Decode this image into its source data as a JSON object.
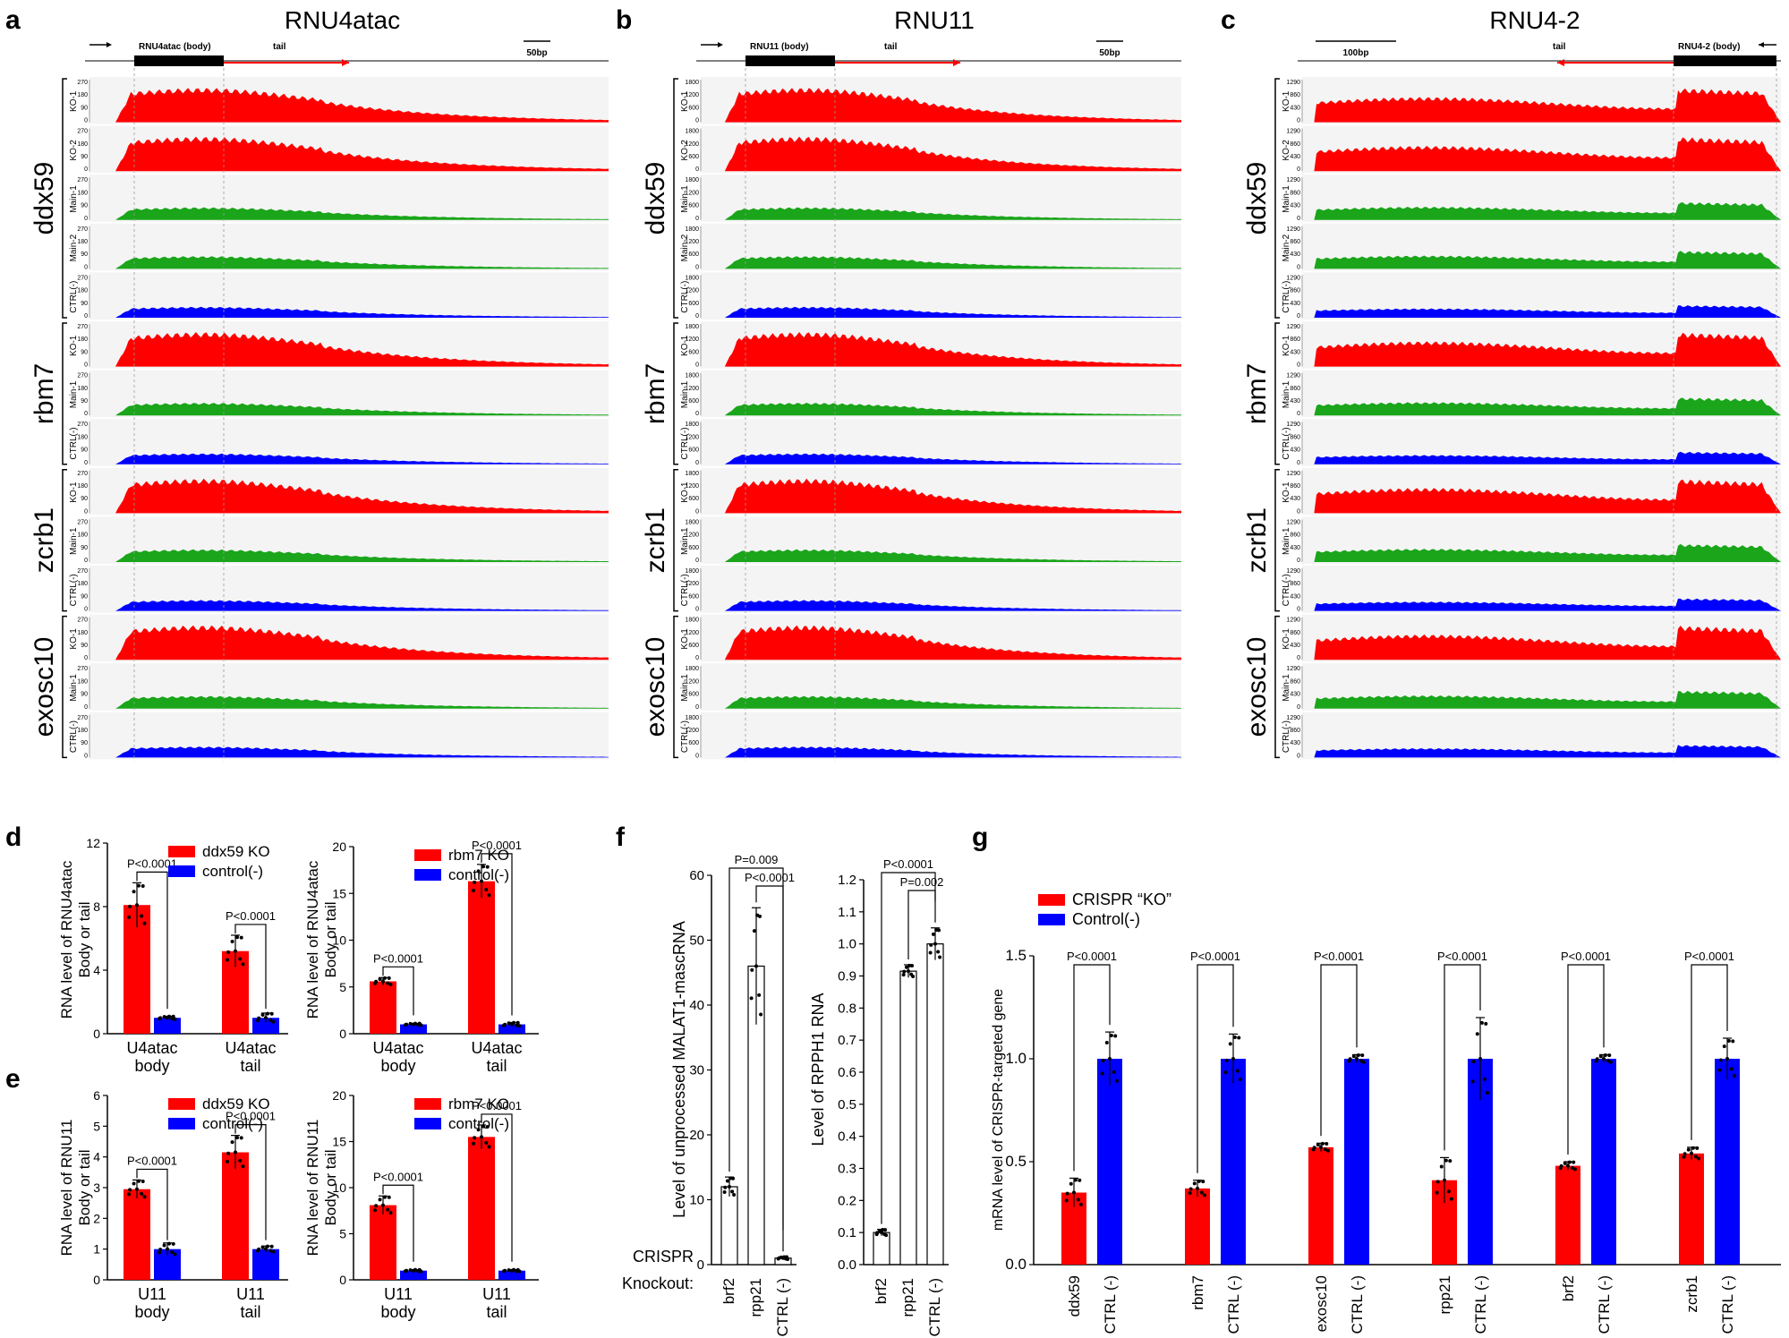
{
  "panel_letters": [
    "a",
    "b",
    "c",
    "d",
    "e",
    "f",
    "g"
  ],
  "colors": {
    "ko": "#ff0000",
    "main": "#1aa51a",
    "ctrl": "#0000ff",
    "black": "#000000",
    "track_bg": "#f4f4f4"
  },
  "gene_groups": [
    {
      "name": "ddx59",
      "tracks": [
        "KO-1",
        "KO-2",
        "Main-1",
        "Main-2",
        "CTRL(-)"
      ]
    },
    {
      "name": "rbm7",
      "tracks": [
        "KO-1",
        "Main-1",
        "CTRL(-)"
      ]
    },
    {
      "name": "zcrb1",
      "tracks": [
        "KO-1",
        "Main-1",
        "CTRL(-)"
      ]
    },
    {
      "name": "exosc10",
      "tracks": [
        "KO-1",
        "Main-1",
        "CTRL(-)"
      ]
    }
  ],
  "track_panels": [
    {
      "letter": "a",
      "title": "RNU4atac",
      "body_label": "RNU4atac (body)",
      "tail_label": "tail",
      "scale_label": "50bp",
      "axis_ticks": [
        "270",
        "180",
        "90",
        "0"
      ]
    },
    {
      "letter": "b",
      "title": "RNU11",
      "body_label": "RNU11 (body)",
      "tail_label": "tail",
      "scale_label": "50bp",
      "axis_ticks": [
        "1800",
        "1200",
        "600",
        "0"
      ]
    },
    {
      "letter": "c",
      "title": "RNU4-2",
      "body_label": "RNU4-2 (body)",
      "tail_label": "tail",
      "scale_label": "100bp",
      "axis_ticks": [
        "1290",
        "860",
        "430",
        "0"
      ]
    }
  ],
  "chart_data": [
    {
      "panel": "d",
      "type": "bar",
      "sub": "ddx59",
      "ylabel": "RNA level of RNU4atac\nBody or tail",
      "ylim": [
        0,
        12
      ],
      "yticks": [
        "0",
        "4",
        "8",
        "12"
      ],
      "categories": [
        "U4atac\nbody",
        "U4atac\ntail"
      ],
      "series": [
        {
          "name": "ddx59 KO",
          "values": [
            8.1,
            5.2
          ],
          "err": [
            1.4,
            1.0
          ]
        },
        {
          "name": "control(-)",
          "values": [
            1.0,
            1.0
          ],
          "err": [
            0.1,
            0.3
          ]
        }
      ],
      "pvalues": [
        "P<0.0001",
        "P<0.0001"
      ]
    },
    {
      "panel": "d",
      "type": "bar",
      "sub": "rbm7",
      "ylabel": "RNA level of RNU4atac\nBody or tail",
      "ylim": [
        0,
        20
      ],
      "yticks": [
        "0",
        "5",
        "10",
        "15",
        "20"
      ],
      "categories": [
        "U4atac\nbody",
        "U4atac\ntail"
      ],
      "series": [
        {
          "name": "rbm7 KO",
          "values": [
            5.6,
            16.3
          ],
          "err": [
            0.4,
            1.8
          ]
        },
        {
          "name": "control(-)",
          "values": [
            1.0,
            1.0
          ],
          "err": [
            0.1,
            0.2
          ]
        }
      ],
      "pvalues": [
        "P<0.0001",
        "P<0.0001"
      ]
    },
    {
      "panel": "e",
      "type": "bar",
      "sub": "ddx59",
      "ylabel": "RNA level of RNU11\nBody or tail",
      "ylim": [
        0,
        6
      ],
      "yticks": [
        "0",
        "1",
        "2",
        "3",
        "4",
        "5",
        "6"
      ],
      "categories": [
        "U11\nbody",
        "U11\ntail"
      ],
      "series": [
        {
          "name": "ddx59 KO",
          "values": [
            2.95,
            4.15
          ],
          "err": [
            0.3,
            0.55
          ]
        },
        {
          "name": "control(-)",
          "values": [
            1.0,
            1.0
          ],
          "err": [
            0.2,
            0.1
          ]
        }
      ],
      "pvalues": [
        "P<0.0001",
        "P<0.0001"
      ]
    },
    {
      "panel": "e",
      "type": "bar",
      "sub": "rbm7",
      "ylabel": "RNA level of RNU11\nBody or tail",
      "ylim": [
        0,
        20
      ],
      "yticks": [
        "0",
        "5",
        "10",
        "15",
        "20"
      ],
      "categories": [
        "U11\nbody",
        "U11\ntail"
      ],
      "series": [
        {
          "name": "rbm7 KO",
          "values": [
            8.1,
            15.5
          ],
          "err": [
            1.0,
            1.3
          ]
        },
        {
          "name": "control(-)",
          "values": [
            1.0,
            1.0
          ],
          "err": [
            0.1,
            0.1
          ]
        }
      ],
      "pvalues": [
        "P<0.0001",
        "P<0.0001"
      ]
    },
    {
      "panel": "f",
      "type": "bar",
      "ylabel": "Level of unprocessed MALAT1-mascRNA",
      "ylim": [
        0,
        60
      ],
      "yticks": [
        "0",
        "10",
        "20",
        "30",
        "40",
        "50",
        "60"
      ],
      "categories": [
        "brf2",
        "rpp21",
        "CTRL (-)"
      ],
      "values": [
        12.0,
        46.0,
        1.0
      ],
      "err": [
        1.5,
        9.0,
        0.2
      ],
      "pvalues": [
        "P=0.009",
        "P<0.0001"
      ],
      "xprefix": [
        "CRISPR",
        "Knockout:"
      ]
    },
    {
      "panel": "f",
      "type": "bar",
      "ylabel": "Level of RPPH1 RNA",
      "ylim": [
        0,
        1.2
      ],
      "yticks": [
        "0.0",
        "0.1",
        "0.2",
        "0.3",
        "0.4",
        "0.5",
        "0.6",
        "0.7",
        "0.8",
        "0.9",
        "1.0",
        "1.1",
        "1.2"
      ],
      "categories": [
        "brf2",
        "rpp21",
        "CTRL (-)"
      ],
      "values": [
        0.1,
        0.915,
        1.0
      ],
      "err": [
        0.01,
        0.02,
        0.05
      ],
      "pvalues": [
        "P<0.0001",
        "P=0.002"
      ]
    },
    {
      "panel": "g",
      "type": "bar",
      "ylabel": "mRNA level of CRISPR-targeted gene",
      "ylim": [
        0,
        1.5
      ],
      "yticks": [
        "0.0",
        "0.5",
        "1.0",
        "1.5"
      ],
      "legend": [
        "CRISPR “KO”",
        "Control(-)"
      ],
      "groups": [
        "ddx59",
        "rbm7",
        "exosc10",
        "rpp21",
        "brf2",
        "zcrb1"
      ],
      "control_label": "CTRL (-)",
      "ko_values": [
        0.35,
        0.37,
        0.57,
        0.41,
        0.48,
        0.54
      ],
      "ko_err": [
        0.07,
        0.04,
        0.02,
        0.11,
        0.02,
        0.03
      ],
      "ctrl_values": [
        1.0,
        1.0,
        1.0,
        1.0,
        1.0,
        1.0
      ],
      "ctrl_err": [
        0.13,
        0.12,
        0.02,
        0.2,
        0.02,
        0.1
      ],
      "pvalues": [
        "P<0.0001",
        "P<0.0001",
        "P<0.0001",
        "P<0.0001",
        "P<0.0001",
        "P<0.0001"
      ]
    }
  ]
}
